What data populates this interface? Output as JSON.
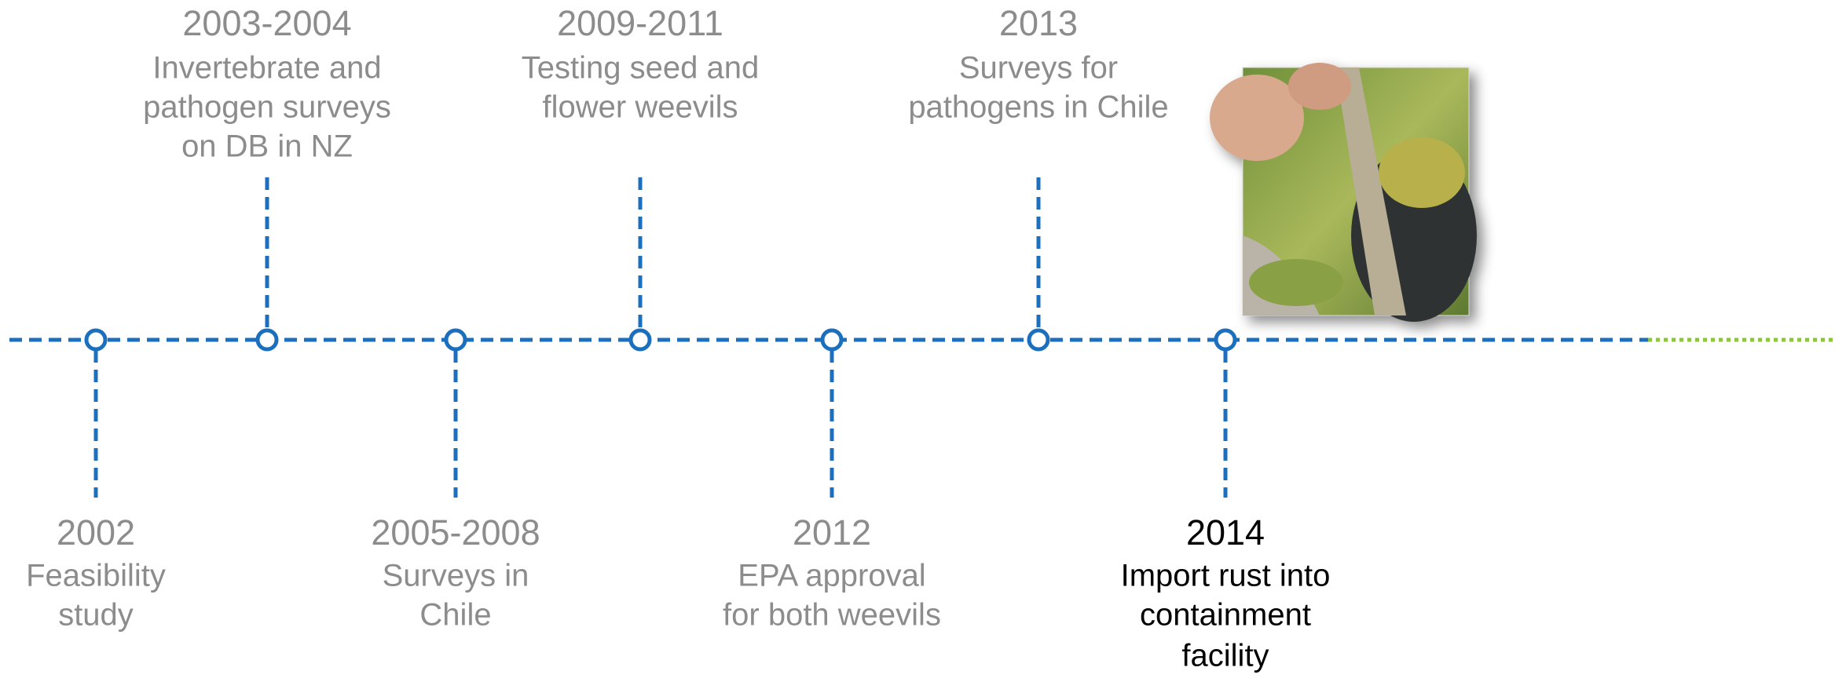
{
  "timeline": {
    "events": [
      {
        "year": "2002",
        "description": [
          "Feasibility",
          "study"
        ]
      },
      {
        "year": "2003-2004",
        "description": [
          "Invertebrate and",
          "pathogen surveys",
          "on DB in NZ"
        ]
      },
      {
        "year": "2005-2008",
        "description": [
          "Surveys in",
          "Chile"
        ]
      },
      {
        "year": "2009-2011",
        "description": [
          "Testing seed and",
          "flower weevils"
        ]
      },
      {
        "year": "2012",
        "description": [
          "EPA approval",
          "for both weevils"
        ]
      },
      {
        "year": "2013",
        "description": [
          "Surveys for",
          "pathogens in Chile"
        ]
      },
      {
        "year": "2014",
        "description": [
          "Import rust into",
          "containment",
          "facility"
        ]
      }
    ]
  }
}
